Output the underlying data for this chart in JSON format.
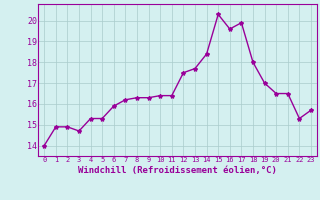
{
  "x": [
    0,
    1,
    2,
    3,
    4,
    5,
    6,
    7,
    8,
    9,
    10,
    11,
    12,
    13,
    14,
    15,
    16,
    17,
    18,
    19,
    20,
    21,
    22,
    23
  ],
  "y": [
    14.0,
    14.9,
    14.9,
    14.7,
    15.3,
    15.3,
    15.9,
    16.2,
    16.3,
    16.3,
    16.4,
    16.4,
    17.5,
    17.7,
    18.4,
    20.3,
    19.6,
    19.9,
    18.0,
    17.0,
    16.5,
    16.5,
    15.3,
    15.7
  ],
  "line_color": "#990099",
  "marker": "*",
  "marker_size": 3.0,
  "xlabel": "Windchill (Refroidissement éolien,°C)",
  "xlabel_fontsize": 6.5,
  "xtick_labels": [
    "0",
    "1",
    "2",
    "3",
    "4",
    "5",
    "6",
    "7",
    "8",
    "9",
    "10",
    "11",
    "12",
    "13",
    "14",
    "15",
    "16",
    "17",
    "18",
    "19",
    "20",
    "21",
    "22",
    "23"
  ],
  "ytick_values": [
    14,
    15,
    16,
    17,
    18,
    19,
    20
  ],
  "ylim": [
    13.5,
    20.8
  ],
  "xlim": [
    -0.5,
    23.5
  ],
  "bg_color": "#d4f0f0",
  "grid_color": "#aacccc",
  "tick_color": "#990099",
  "line_width": 1.0,
  "marker_color": "#990099",
  "xtick_fontsize": 5.0,
  "ytick_fontsize": 6.0
}
